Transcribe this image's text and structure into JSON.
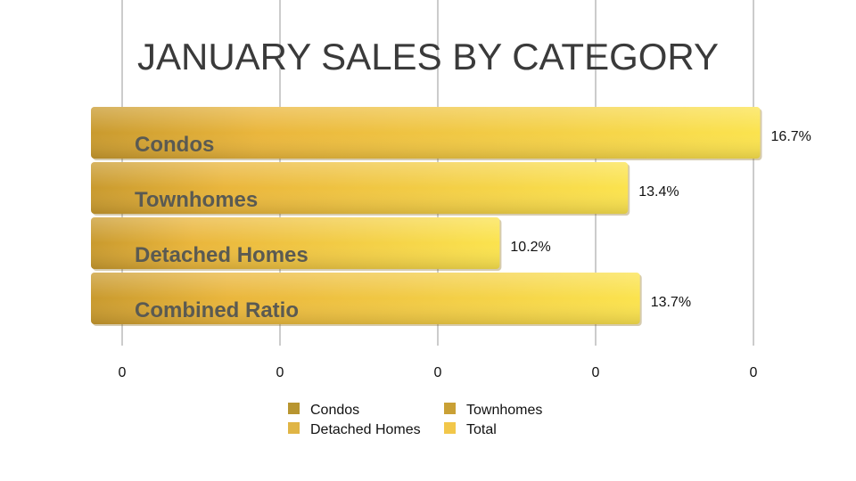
{
  "chart_data": {
    "type": "bar",
    "orientation": "horizontal",
    "title": "JANUARY SALES BY CATEGORY",
    "categories": [
      "Condos",
      "Townhomes",
      "Detached Homes",
      "Combined Ratio"
    ],
    "values": [
      16.7,
      13.4,
      10.2,
      13.7
    ],
    "value_labels": [
      "16.7%",
      "13.4%",
      "10.2%",
      "13.7%"
    ],
    "x_tick_labels": [
      "0",
      "0",
      "0",
      "0",
      "0"
    ],
    "xlim": [
      0,
      17
    ],
    "grid": true,
    "legend": {
      "placement": "bottom",
      "entries": [
        {
          "name": "Condos",
          "color": "#b89530"
        },
        {
          "name": "Townhomes",
          "color": "#c9a035"
        },
        {
          "name": "Detached Homes",
          "color": "#e0b545"
        },
        {
          "name": "Total",
          "color": "#f2c74a"
        }
      ]
    },
    "bar_colors": [
      "#e9b93a",
      "#efc23c",
      "#f2c93f",
      "#f5d044"
    ]
  }
}
